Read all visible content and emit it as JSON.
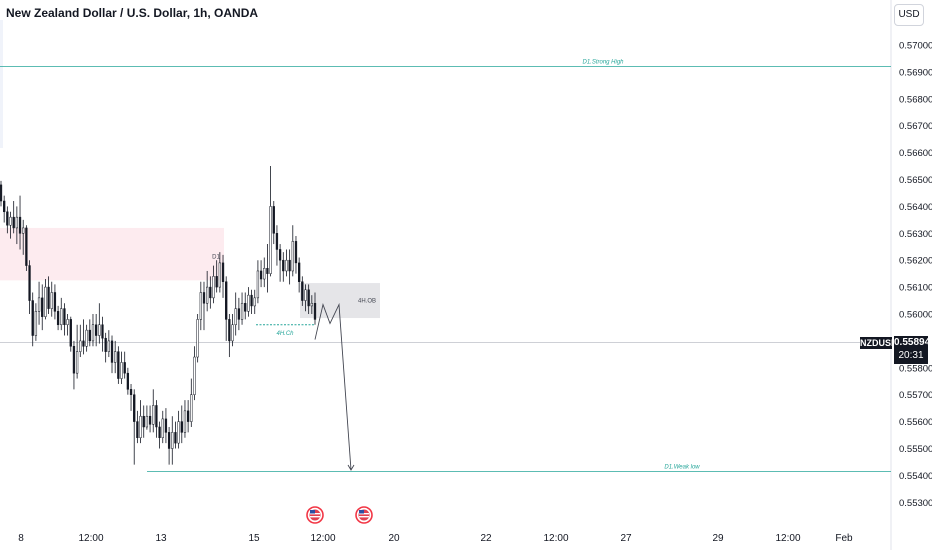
{
  "header": {
    "title": "New Zealand Dollar / U.S. Dollar, 1h, OANDA",
    "currency_button": "USD"
  },
  "current_price": {
    "symbol": "NZDUSD",
    "value": "0.55894",
    "countdown": "20:31"
  },
  "colors": {
    "up_down": "#131722",
    "level_line": "#26a69a",
    "price_line": "#b2b5be",
    "supply_zone": "#fdebef",
    "ob_zone": "#e5e5e8",
    "arrow": "#434651",
    "ch_line": "#26a69a"
  },
  "icons": [
    "us-flag-icon",
    "us-flag-icon"
  ],
  "chart_data": {
    "type": "candlestick",
    "ylim": [
      0.5525,
      0.571
    ],
    "yticks": [
      "0.57000",
      "0.56900",
      "0.56800",
      "0.56700",
      "0.56600",
      "0.56500",
      "0.56400",
      "0.56300",
      "0.56200",
      "0.56100",
      "0.56000",
      "0.55800",
      "0.55700",
      "0.55600",
      "0.55500",
      "0.55400",
      "0.55300"
    ],
    "xticks": [
      "8",
      "12:00",
      "13",
      "15",
      "12:00",
      "20",
      "22",
      "12:00",
      "27",
      "29",
      "12:00",
      "Feb"
    ],
    "levels": [
      {
        "label": "D1.Strong High",
        "price": 0.5692
      },
      {
        "label": "D1.Weak low",
        "price": 0.55415
      }
    ],
    "zones": [
      {
        "kind": "supply",
        "top": 0.5632,
        "bottom": 0.56125
      },
      {
        "kind": "ob",
        "label": "4H.OB",
        "top": 0.56115,
        "bottom": 0.55985
      }
    ],
    "annotations": [
      {
        "text": "D1",
        "price": 0.5621
      },
      {
        "text": "4H.Ch",
        "price": 0.5596
      }
    ],
    "projection": [
      0.55905,
      0.56035,
      0.55965,
      0.56035,
      0.5542
    ],
    "last_price": 0.55894,
    "series": [
      {
        "candles": [
          [
            0.5648,
            0.5642,
            0.56495,
            0.564
          ],
          [
            0.5642,
            0.5638,
            0.5644,
            0.5634
          ],
          [
            0.5638,
            0.5633,
            0.564,
            0.563
          ],
          [
            0.5633,
            0.5636,
            0.5638,
            0.5628
          ],
          [
            0.5636,
            0.5632,
            0.5642,
            0.563
          ],
          [
            0.5632,
            0.5636,
            0.564,
            0.5626
          ],
          [
            0.5636,
            0.563,
            0.5644,
            0.5624
          ],
          [
            0.563,
            0.5632,
            0.5635,
            0.5622
          ],
          [
            0.5632,
            0.5618,
            0.5633,
            0.5616
          ],
          [
            0.5618,
            0.5605,
            0.562,
            0.56
          ],
          [
            0.5605,
            0.5592,
            0.5608,
            0.5588
          ],
          [
            0.5592,
            0.5601,
            0.5604,
            0.559
          ],
          [
            0.5601,
            0.5606,
            0.5612,
            0.5596
          ],
          [
            0.5606,
            0.5599,
            0.5611,
            0.5594
          ],
          [
            0.5599,
            0.561,
            0.5613,
            0.5598
          ],
          [
            0.561,
            0.5602,
            0.5614,
            0.56
          ],
          [
            0.5602,
            0.5608,
            0.5612,
            0.5599
          ],
          [
            0.5608,
            0.5601,
            0.5611,
            0.5598
          ],
          [
            0.5601,
            0.5596,
            0.5603,
            0.5594
          ],
          [
            0.5596,
            0.5602,
            0.5606,
            0.5594
          ],
          [
            0.5602,
            0.5596,
            0.5604,
            0.5592
          ],
          [
            0.5596,
            0.5598,
            0.56,
            0.5592
          ],
          [
            0.5598,
            0.5588,
            0.5599,
            0.5586
          ],
          [
            0.5588,
            0.5578,
            0.559,
            0.5572
          ],
          [
            0.5578,
            0.5586,
            0.5596,
            0.5576
          ],
          [
            0.5586,
            0.559,
            0.5596,
            0.5584
          ],
          [
            0.559,
            0.5588,
            0.5598,
            0.5585
          ],
          [
            0.5588,
            0.5594,
            0.5596,
            0.5586
          ],
          [
            0.5594,
            0.559,
            0.5598,
            0.5588
          ],
          [
            0.559,
            0.5596,
            0.56,
            0.5588
          ],
          [
            0.5596,
            0.5592,
            0.56,
            0.5588
          ],
          [
            0.5592,
            0.5596,
            0.5604,
            0.5589
          ],
          [
            0.5596,
            0.5591,
            0.5599,
            0.5586
          ],
          [
            0.5591,
            0.5586,
            0.5593,
            0.5582
          ],
          [
            0.5586,
            0.559,
            0.5594,
            0.5584
          ],
          [
            0.559,
            0.5582,
            0.5592,
            0.5578
          ],
          [
            0.5582,
            0.5586,
            0.559,
            0.5578
          ],
          [
            0.5586,
            0.5576,
            0.5588,
            0.5574
          ],
          [
            0.5576,
            0.5582,
            0.5586,
            0.5574
          ],
          [
            0.5582,
            0.5578,
            0.5586,
            0.5576
          ],
          [
            0.5578,
            0.5572,
            0.558,
            0.557
          ],
          [
            0.5572,
            0.557,
            0.5574,
            0.5564
          ],
          [
            0.557,
            0.556,
            0.5572,
            0.5544
          ],
          [
            0.556,
            0.5554,
            0.5564,
            0.5552
          ],
          [
            0.5554,
            0.5562,
            0.5568,
            0.5552
          ],
          [
            0.5562,
            0.5558,
            0.5566,
            0.5554
          ],
          [
            0.5558,
            0.5562,
            0.5566,
            0.5557
          ],
          [
            0.5562,
            0.5559,
            0.5566,
            0.5556
          ],
          [
            0.5559,
            0.5566,
            0.5572,
            0.5556
          ],
          [
            0.5566,
            0.5558,
            0.5568,
            0.5554
          ],
          [
            0.5558,
            0.5554,
            0.556,
            0.555
          ],
          [
            0.5554,
            0.5561,
            0.5564,
            0.5552
          ],
          [
            0.5561,
            0.5556,
            0.5565,
            0.5552
          ],
          [
            0.5556,
            0.555,
            0.5558,
            0.5544
          ],
          [
            0.555,
            0.5556,
            0.5562,
            0.5544
          ],
          [
            0.5556,
            0.5552,
            0.556,
            0.555
          ],
          [
            0.5552,
            0.556,
            0.5564,
            0.555
          ],
          [
            0.556,
            0.5556,
            0.5566,
            0.5552
          ],
          [
            0.5556,
            0.5564,
            0.5568,
            0.5554
          ],
          [
            0.5564,
            0.556,
            0.5568,
            0.5556
          ],
          [
            0.556,
            0.557,
            0.5576,
            0.5558
          ],
          [
            0.557,
            0.5584,
            0.5588,
            0.5568
          ],
          [
            0.5584,
            0.5598,
            0.56,
            0.5582
          ],
          [
            0.5598,
            0.5608,
            0.5612,
            0.5594
          ],
          [
            0.5608,
            0.5604,
            0.5612,
            0.5594
          ],
          [
            0.5604,
            0.561,
            0.5616,
            0.5601
          ],
          [
            0.561,
            0.5606,
            0.5614,
            0.5602
          ],
          [
            0.5606,
            0.5614,
            0.5618,
            0.5604
          ],
          [
            0.5614,
            0.561,
            0.562,
            0.5608
          ],
          [
            0.561,
            0.5619,
            0.5623,
            0.5608
          ],
          [
            0.5619,
            0.5612,
            0.5622,
            0.5606
          ],
          [
            0.5612,
            0.5598,
            0.5614,
            0.559
          ],
          [
            0.5598,
            0.559,
            0.56,
            0.5584
          ],
          [
            0.559,
            0.5596,
            0.56,
            0.5588
          ],
          [
            0.5596,
            0.5602,
            0.5608,
            0.5592
          ],
          [
            0.5602,
            0.5598,
            0.5606,
            0.5594
          ],
          [
            0.5598,
            0.5604,
            0.5608,
            0.5596
          ],
          [
            0.5604,
            0.5601,
            0.5608,
            0.5598
          ],
          [
            0.5601,
            0.5607,
            0.561,
            0.5599
          ],
          [
            0.5607,
            0.5603,
            0.5609,
            0.56
          ],
          [
            0.5603,
            0.5606,
            0.5609,
            0.56
          ],
          [
            0.5606,
            0.5616,
            0.562,
            0.5604
          ],
          [
            0.5616,
            0.5613,
            0.562,
            0.561
          ],
          [
            0.5613,
            0.5617,
            0.5621,
            0.561
          ],
          [
            0.5617,
            0.5615,
            0.5626,
            0.5608
          ],
          [
            0.5615,
            0.564,
            0.5655,
            0.5614
          ],
          [
            0.564,
            0.563,
            0.5642,
            0.5626
          ],
          [
            0.563,
            0.5624,
            0.5633,
            0.5618
          ],
          [
            0.5624,
            0.562,
            0.5626,
            0.5612
          ],
          [
            0.562,
            0.5616,
            0.5623,
            0.5612
          ],
          [
            0.5616,
            0.562,
            0.5624,
            0.5614
          ],
          [
            0.562,
            0.5616,
            0.5624,
            0.5611
          ],
          [
            0.5616,
            0.5627,
            0.5633,
            0.5614
          ],
          [
            0.5627,
            0.5619,
            0.5629,
            0.5615
          ],
          [
            0.5619,
            0.5612,
            0.5621,
            0.5608
          ],
          [
            0.5612,
            0.5605,
            0.5614,
            0.5603
          ],
          [
            0.5605,
            0.5609,
            0.5611,
            0.5601
          ],
          [
            0.5609,
            0.5603,
            0.5611,
            0.56
          ],
          [
            0.5603,
            0.5604,
            0.5607,
            0.56
          ],
          [
            0.5604,
            0.5598,
            0.5608,
            0.5596
          ]
        ]
      }
    ]
  }
}
